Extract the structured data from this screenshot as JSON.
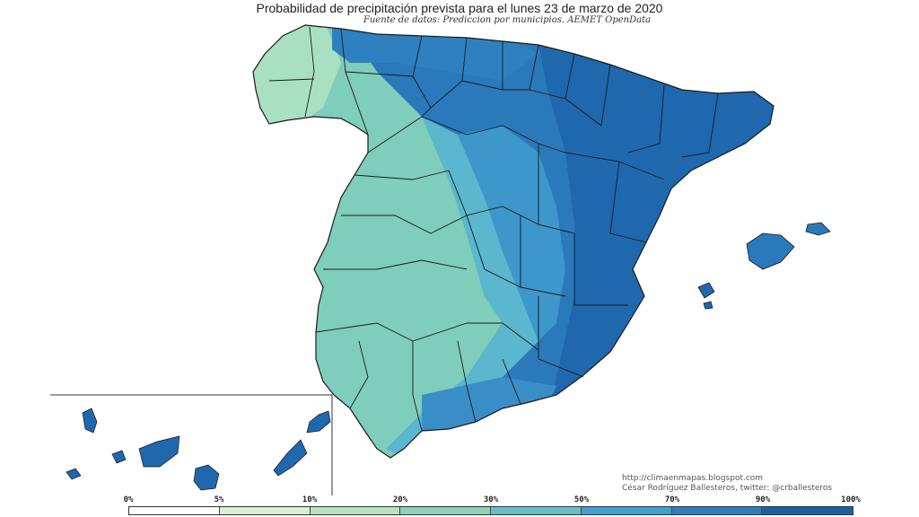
{
  "title": "Probabilidad de precipitación prevista para el lunes 23 de marzo de 2020",
  "subtitle": "Fuente de datos: Prediccion por municipios. AEMET OpenData",
  "credits": {
    "url": "http://climaenmapas.blogspot.com",
    "author": "César Rodríguez Ballesteros, twitter: @crballesteros"
  },
  "legend": {
    "labels": [
      "0%",
      "5%",
      "10%",
      "20%",
      "30%",
      "50%",
      "70%",
      "90%",
      "100%"
    ],
    "colors": [
      "#ffffff",
      "#d9f0d3",
      "#b7e3c0",
      "#8fd1bb",
      "#67c0c4",
      "#3ea1cf",
      "#2b7fbd",
      "#1a5ea7"
    ]
  },
  "colors": {
    "low": "#9fdcc0",
    "mid_low": "#7fcdbb",
    "mid": "#5bb7cd",
    "mid_high": "#3b8fc8",
    "high": "#1f68ae",
    "border": "#1a1a1a"
  }
}
